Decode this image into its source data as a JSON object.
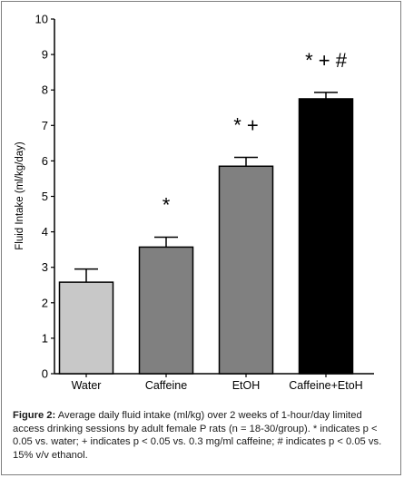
{
  "chart_data": {
    "type": "bar",
    "ylabel": "Fluid Intake (ml/kg/day)",
    "ylim": [
      0,
      10
    ],
    "yticks": [
      "0",
      "1",
      "2",
      "3",
      "4",
      "5",
      "6",
      "7",
      "8",
      "9",
      "10"
    ],
    "categories": [
      "Water",
      "Caffeine",
      "EtOH",
      "Caffeine+EtoH"
    ],
    "values": [
      2.58,
      3.57,
      5.85,
      7.75
    ],
    "errors": [
      0.37,
      0.28,
      0.25,
      0.18
    ],
    "significance": [
      "",
      "*",
      "* +",
      "* + #"
    ],
    "colors": [
      "#c8c8c8",
      "#808080",
      "#808080",
      "#000000"
    ],
    "grid": false
  },
  "caption": {
    "label": "Figure 2:",
    "text": " Average daily fluid intake (ml/kg) over 2 weeks of 1-hour/day limited access drinking sessions by adult female P rats (n = 18-30/group). * indicates p < 0.05 vs. water; + indicates p < 0.05 vs. 0.3 mg/ml caffeine; # indicates p < 0.05 vs. 15% v/v ethanol."
  }
}
